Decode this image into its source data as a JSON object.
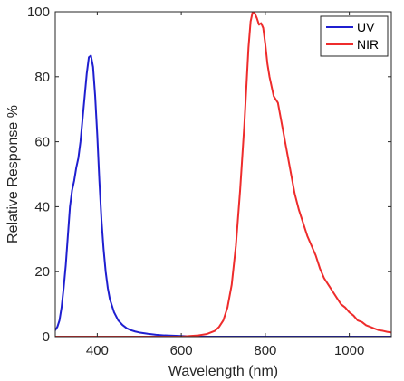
{
  "chart_data": {
    "type": "line",
    "title": "",
    "xlabel": "Wavelength (nm)",
    "ylabel": "Relative Response %",
    "xlim": [
      300,
      1100
    ],
    "ylim": [
      0,
      100
    ],
    "xticks": [
      "400",
      "600",
      "800",
      "1000"
    ],
    "yticks": [
      "0",
      "20",
      "40",
      "60",
      "80",
      "100"
    ],
    "grid": false,
    "legend_position": "top-right",
    "series": [
      {
        "name": "UV",
        "color": "#1f1fd0",
        "x": [
          300,
          305,
          310,
          315,
          320,
          325,
          330,
          335,
          340,
          345,
          350,
          355,
          360,
          365,
          370,
          375,
          380,
          385,
          390,
          395,
          400,
          405,
          410,
          415,
          420,
          425,
          430,
          440,
          450,
          460,
          470,
          480,
          490,
          500,
          520,
          540,
          560,
          580,
          600,
          620,
          640,
          660,
          680,
          700,
          750,
          800,
          900,
          1000,
          1100
        ],
        "y": [
          2,
          3,
          5,
          9,
          15,
          22,
          31,
          40,
          45,
          48,
          52,
          55,
          60,
          67,
          74,
          81,
          86,
          86.5,
          83,
          74,
          62,
          48,
          36,
          27,
          20,
          15,
          11.5,
          7.5,
          5,
          3.6,
          2.6,
          2,
          1.6,
          1.3,
          0.9,
          0.6,
          0.4,
          0.3,
          0.2,
          0.1,
          0.05,
          0,
          0,
          0,
          0,
          0,
          0,
          0,
          0
        ]
      },
      {
        "name": "NIR",
        "color": "#ee2c2c",
        "x": [
          300,
          400,
          500,
          600,
          620,
          640,
          660,
          680,
          690,
          700,
          710,
          720,
          730,
          740,
          750,
          755,
          760,
          765,
          770,
          775,
          780,
          785,
          790,
          795,
          800,
          805,
          810,
          815,
          820,
          830,
          840,
          850,
          860,
          870,
          880,
          890,
          900,
          910,
          920,
          930,
          940,
          950,
          960,
          970,
          980,
          990,
          1000,
          1010,
          1020,
          1030,
          1040,
          1050,
          1060,
          1070,
          1080,
          1090,
          1100
        ],
        "y": [
          0,
          0,
          0,
          0,
          0.2,
          0.4,
          0.8,
          1.8,
          3,
          5,
          9,
          16,
          28,
          45,
          65,
          77,
          89,
          97,
          100,
          99.5,
          98,
          96,
          96.5,
          95,
          90,
          84,
          80,
          77,
          74,
          72,
          65,
          58,
          51,
          44,
          39,
          35,
          31,
          28,
          25,
          21,
          18,
          16,
          14,
          12,
          10,
          9,
          7.5,
          6.5,
          5,
          4.5,
          3.5,
          3,
          2.5,
          2,
          1.8,
          1.5,
          1.3
        ]
      }
    ]
  }
}
